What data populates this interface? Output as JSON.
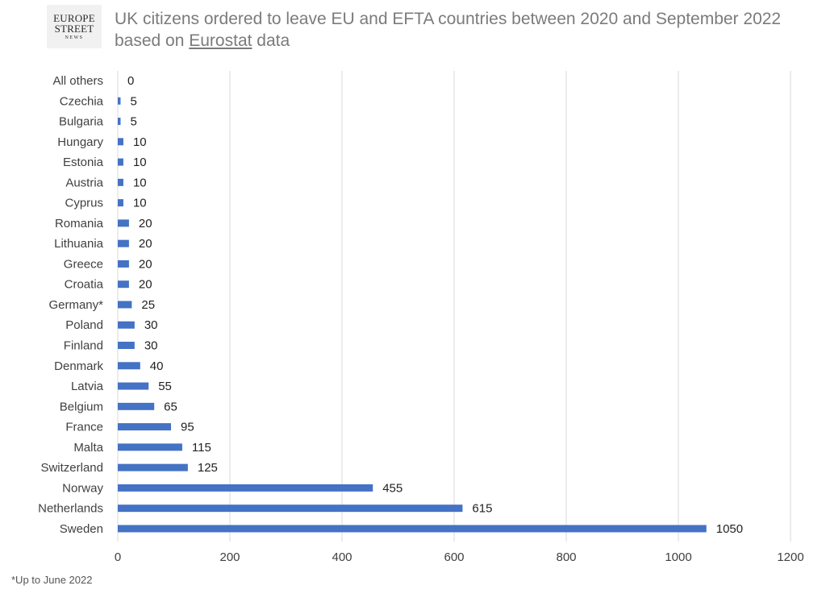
{
  "logo": {
    "line1": "EUROPE",
    "line2": "STREET",
    "line3": "NEWS"
  },
  "title": {
    "main": "UK citizens ordered to leave EU and EFTA countries between 2020 and September 2022",
    "prefix": "based on ",
    "link": "Eurostat",
    "suffix": " data"
  },
  "footnote": "*Up to June 2022",
  "colors": {
    "bar": "#4472c4",
    "grid": "#d9d9d9",
    "axis_text": "#404040"
  },
  "chart_data": {
    "type": "bar",
    "orientation": "horizontal",
    "categories": [
      "All others",
      "Czechia",
      "Bulgaria",
      "Hungary",
      "Estonia",
      "Austria",
      "Cyprus",
      "Romania",
      "Lithuania",
      "Greece",
      "Croatia",
      "Germany*",
      "Poland",
      "Finland",
      "Denmark",
      "Latvia",
      "Belgium",
      "France",
      "Malta",
      "Switzerland",
      "Norway",
      "Netherlands",
      "Sweden"
    ],
    "values": [
      0,
      5,
      5,
      10,
      10,
      10,
      10,
      20,
      20,
      20,
      20,
      25,
      30,
      30,
      40,
      55,
      65,
      95,
      115,
      125,
      455,
      615,
      1050
    ],
    "x_ticks": [
      0,
      200,
      400,
      600,
      800,
      1000,
      1200
    ],
    "xlim": [
      0,
      1200
    ],
    "grid": "vertical",
    "data_labels": true,
    "legend": "none"
  }
}
